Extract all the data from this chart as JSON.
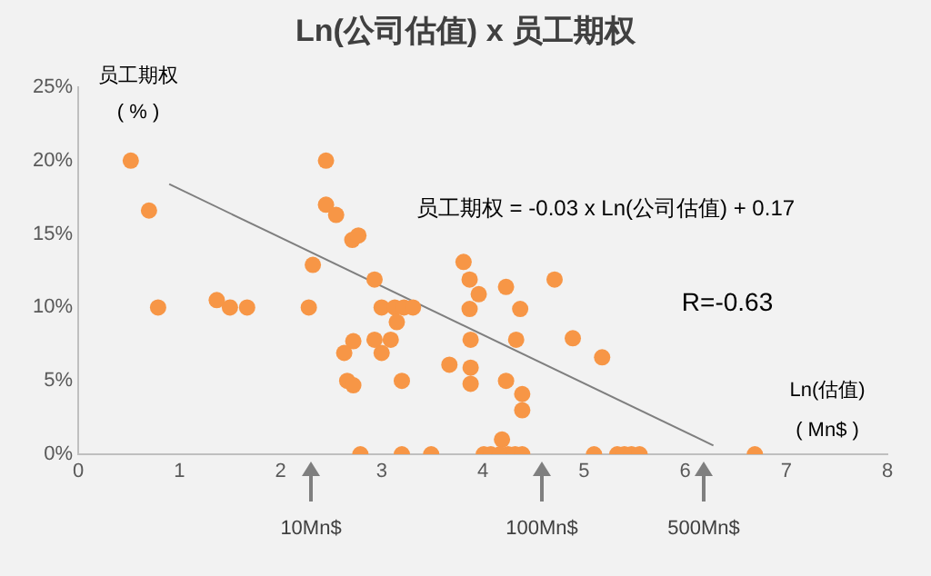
{
  "chart_data": {
    "type": "scatter",
    "title": "Ln(公司估值) x 员工期权",
    "xlabel": "Ln(估值)\n( Mn$ )",
    "ylabel": "员工期权\n( % )",
    "annotations": [
      "员工期权 = -0.03 x Ln(公司估值) + 0.17",
      "R=-0.63",
      "10Mn$",
      "100Mn$",
      "500Mn$"
    ],
    "series": [
      {
        "color": "#f79646",
        "marker": "circle",
        "x": [
          0.52,
          0.7,
          0.79,
          1.37,
          1.5,
          1.67,
          2.28,
          2.32,
          2.45,
          2.45,
          2.55,
          2.71,
          2.77,
          2.93,
          3.0,
          3.13,
          3.22,
          3.31,
          3.15,
          2.93,
          3.09,
          3.0,
          2.72,
          2.63,
          2.66,
          2.72,
          3.2,
          3.81,
          3.87,
          3.96,
          3.87,
          3.88,
          3.67,
          3.88,
          3.88,
          4.23,
          4.37,
          4.33,
          4.23,
          4.39,
          4.39,
          4.19,
          4.71,
          4.89,
          5.18,
          2.79,
          3.2,
          3.49,
          4.01,
          4.08,
          4.17,
          4.25,
          4.32,
          4.39,
          5.1,
          5.33,
          5.4,
          5.47,
          5.55,
          6.69
        ],
        "values": [
          20,
          16.6,
          10,
          10.5,
          10,
          10,
          10,
          12.9,
          20,
          17,
          16.3,
          14.6,
          14.9,
          11.9,
          10,
          10,
          10,
          10,
          9,
          7.8,
          7.8,
          6.9,
          7.7,
          6.9,
          5,
          4.7,
          5,
          13.1,
          11.9,
          10.9,
          9.9,
          7.8,
          6.1,
          5.9,
          4.8,
          11.4,
          9.9,
          7.8,
          5,
          4.1,
          3,
          1,
          11.9,
          7.9,
          6.6,
          0,
          0,
          0,
          0,
          0,
          0,
          0,
          0,
          0,
          0,
          0,
          0,
          0,
          0,
          0
        ]
      },
      {
        "type": "line",
        "color": "#7f7f7f",
        "x": [
          0.9,
          6.28
        ],
        "values": [
          18.4,
          0.6
        ]
      }
    ],
    "xlim": [
      0,
      8
    ],
    "xticks": [
      0,
      1,
      2,
      3,
      4,
      5,
      6,
      7,
      8
    ],
    "ylim": [
      0,
      25
    ],
    "yticks": [
      {
        "value": 0,
        "label": "0%"
      },
      {
        "value": 5,
        "label": "5%"
      },
      {
        "value": 10,
        "label": "10%"
      },
      {
        "value": 15,
        "label": "15%"
      },
      {
        "value": 20,
        "label": "20%"
      },
      {
        "value": 25,
        "label": "25%"
      }
    ],
    "grid": false,
    "legend": false,
    "line_style": "solid"
  }
}
